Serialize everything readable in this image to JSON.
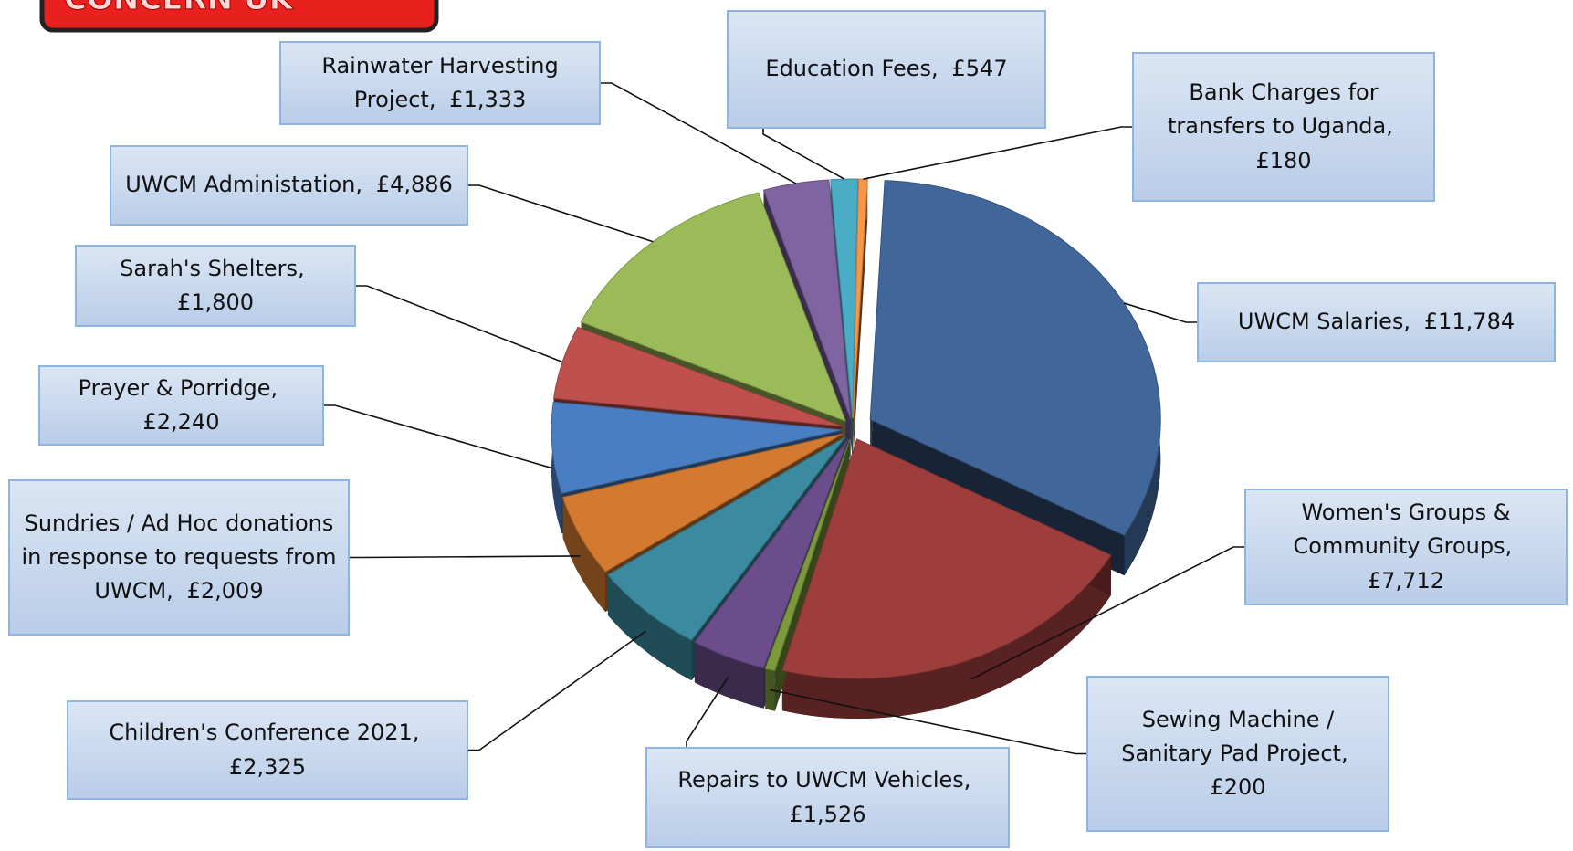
{
  "header": {
    "logo": "CONCERN UK"
  },
  "chart_data": {
    "type": "pie",
    "categories": [
      "UWCM Salaries,",
      "Women's Groups & Community Groups,",
      "Sewing Machine / Sanitary Pad Project,",
      "Repairs to UWCM Vehicles,",
      "Children's Conference 2021,",
      "Sundries / Ad Hoc donations in response to requests from UWCM,",
      "Prayer & Porridge,",
      "Sarah's Shelters,",
      "UWCM Administation,",
      "Rainwater Harvesting Project,",
      "Education Fees,",
      "Bank Charges for transfers to Uganda,"
    ],
    "values": [
      11784,
      7712,
      200,
      1526,
      2325,
      2009,
      2240,
      1800,
      4886,
      1333,
      547,
      180
    ],
    "value_labels": [
      "£11,784",
      "£7,712",
      "£200",
      "£1,526",
      "£2,325",
      "£2,009",
      "£2,240",
      "£1,800",
      "£4,886",
      "£1,333",
      "£547",
      "£180"
    ],
    "colors": [
      "#41679a",
      "#9e3e3c",
      "#7a9a3c",
      "#6a4d8a",
      "#3b8aa0",
      "#d47a30",
      "#4a7ec2",
      "#c0504d",
      "#9bbb59",
      "#8064a2",
      "#4bacc6",
      "#f79646"
    ]
  }
}
